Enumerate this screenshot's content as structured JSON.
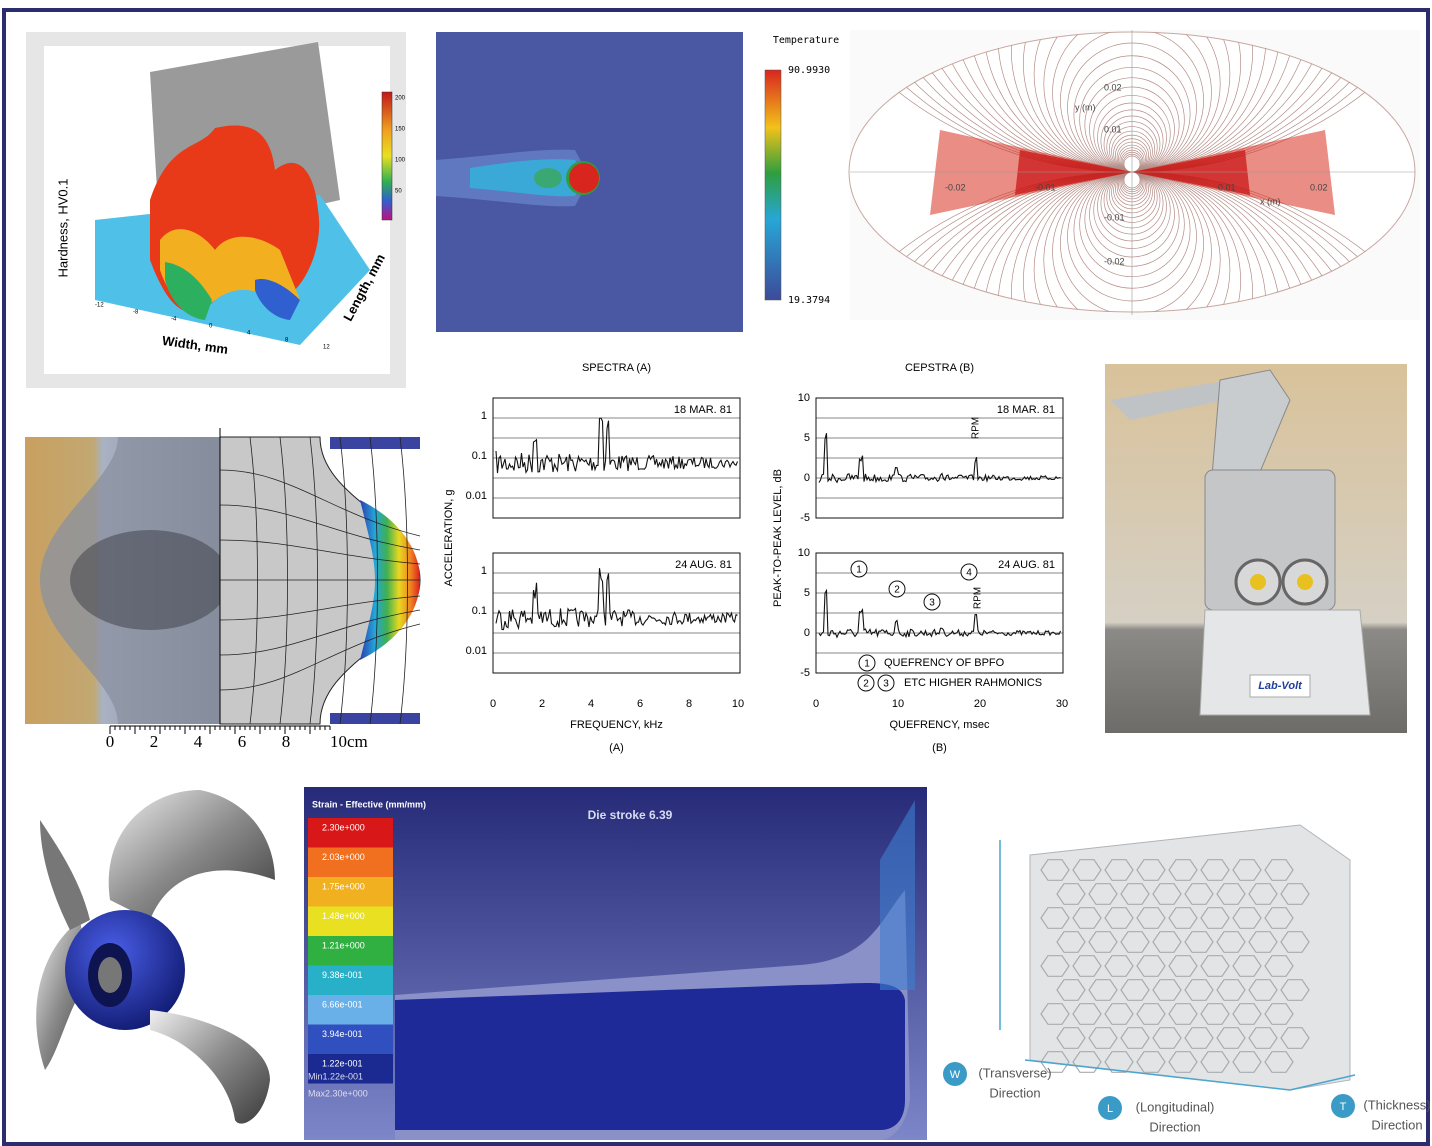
{
  "panels": {
    "hardness_map": {
      "y_label": "Hardness, HV0.1",
      "x_label": "Width, mm",
      "z_label": "Length, mm",
      "colorbar_ticks": [
        "200",
        "150",
        "100",
        "50"
      ],
      "x_ticks": [
        "-12",
        "-8",
        "-4",
        "0",
        "4",
        "8",
        "12"
      ]
    },
    "temperature_field": {
      "title": "Temperature",
      "max": "90.9930",
      "min": "19.3794"
    },
    "field_lines": {
      "x_label": "x (m)",
      "y_label": "y (m)",
      "x_ticks": [
        "-0.02",
        "-0.01",
        "0.01",
        "0.02"
      ],
      "y_ticks": [
        "0.02",
        "0.01",
        "-0.01",
        "-0.02"
      ]
    },
    "bulge_scale": {
      "ticks": [
        "0",
        "2",
        "4",
        "6",
        "8",
        "10cm"
      ]
    },
    "spectra": {
      "title": "SPECTRA (A)",
      "y_label": "ACCELERATION, g",
      "x_label": "FREQUENCY, kHz",
      "caption": "(A)",
      "top_date": "18 MAR. 81",
      "bottom_date": "24 AUG. 81",
      "y_ticks": [
        "1",
        "0.1",
        "0.01"
      ],
      "x_ticks": [
        "0",
        "2",
        "4",
        "6",
        "8",
        "10"
      ]
    },
    "cepstra": {
      "title": "CEPSTRA (B)",
      "y_label": "PEAK-TO-PEAK LEVEL, dB",
      "x_label": "QUEFRENCY, msec",
      "caption": "(B)",
      "top_date": "18 MAR. 81",
      "bottom_date": "24 AUG. 81",
      "y_ticks": [
        "10",
        "5",
        "0",
        "-5"
      ],
      "x_ticks": [
        "0",
        "10",
        "20",
        "30"
      ],
      "rpm_label": "RPM",
      "markers": [
        "1",
        "2",
        "3",
        "4"
      ],
      "note_1": "QUEFRENCY OF BPFO",
      "note_2": "ETC HIGHER RAHMONICS"
    },
    "robot_photo": {
      "brand": "Lab-Volt"
    },
    "strain_field": {
      "title": "Strain - Effective (mm/mm)",
      "stage": "Die stroke 6.39",
      "legend": [
        "2.30e+000",
        "2.03e+000",
        "1.75e+000",
        "1.48e+000",
        "1.21e+000",
        "9.38e-001",
        "6.66e-001",
        "3.94e-001",
        "1.22e-001"
      ],
      "min": "Min1.22e-001",
      "max": "Max2.30e+000"
    },
    "honeycomb": {
      "directions": [
        {
          "letter": "W",
          "name": "(Transverse)",
          "word": "Direction"
        },
        {
          "letter": "L",
          "name": "(Longitudinal)",
          "word": "Direction"
        },
        {
          "letter": "T",
          "name": "(Thickness)",
          "word": "Direction"
        }
      ]
    }
  }
}
